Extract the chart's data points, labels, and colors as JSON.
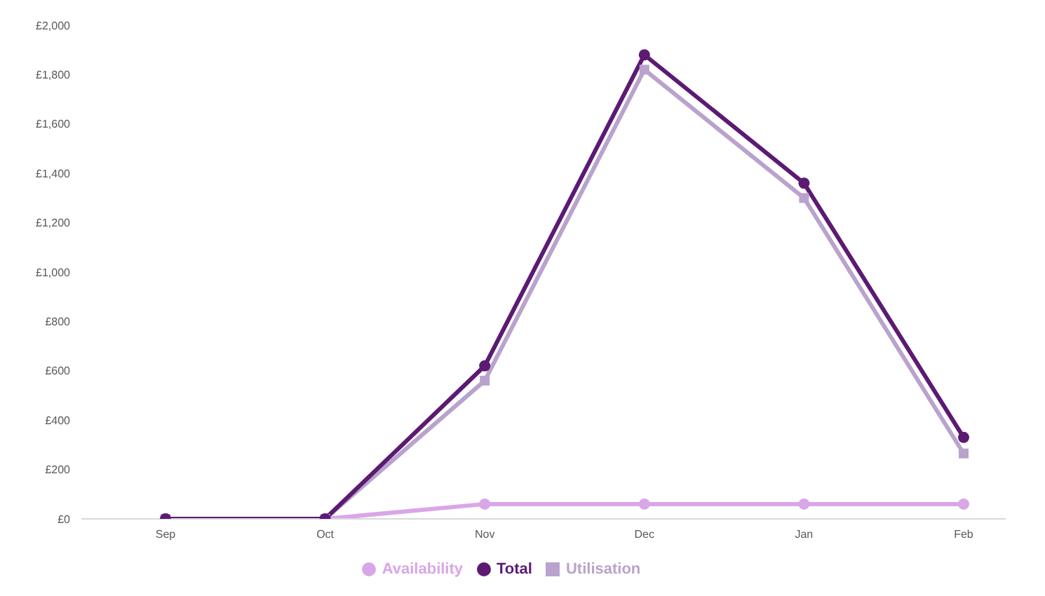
{
  "chart_data": {
    "type": "line",
    "categories": [
      "Sep",
      "Oct",
      "Nov",
      "Dec",
      "Jan",
      "Feb"
    ],
    "series": [
      {
        "name": "Availability",
        "color": "#d9a6e8",
        "marker": "circle",
        "values": [
          0,
          0,
          60,
          60,
          60,
          60
        ]
      },
      {
        "name": "Utilisation",
        "color": "#b9a3cc",
        "marker": "square",
        "values": [
          0,
          0,
          560,
          1820,
          1300,
          265
        ]
      },
      {
        "name": "Total",
        "color": "#5c1a73",
        "marker": "circle",
        "values": [
          0,
          0,
          620,
          1880,
          1360,
          330
        ]
      }
    ],
    "ylim": [
      0,
      2000
    ],
    "yticks": [
      {
        "value": 0,
        "label": "£0"
      },
      {
        "value": 200,
        "label": "£200"
      },
      {
        "value": 400,
        "label": "£400"
      },
      {
        "value": 600,
        "label": "£600"
      },
      {
        "value": 800,
        "label": "£800"
      },
      {
        "value": 1000,
        "label": "£1,000"
      },
      {
        "value": 1200,
        "label": "£1,200"
      },
      {
        "value": 1400,
        "label": "£1,400"
      },
      {
        "value": 1600,
        "label": "£1,600"
      },
      {
        "value": 1800,
        "label": "£1,800"
      },
      {
        "value": 2000,
        "label": "£2,000"
      }
    ],
    "grid": false,
    "legend": "bottom"
  }
}
